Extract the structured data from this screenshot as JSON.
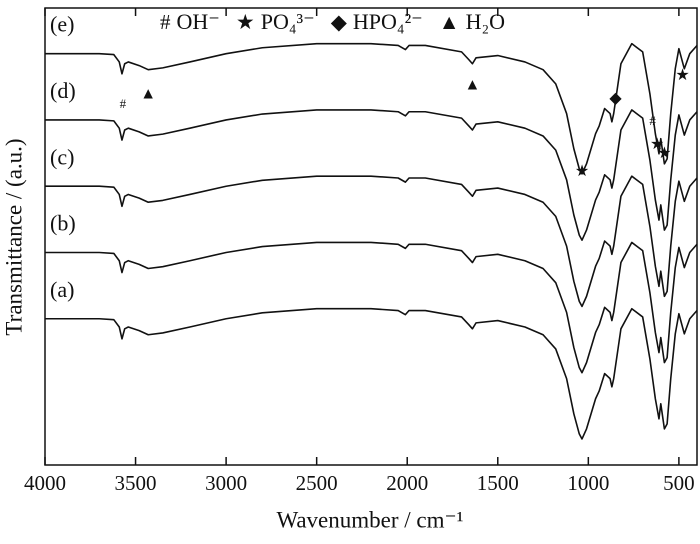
{
  "chart_data": {
    "type": "line",
    "xlabel": "Wavenumber / cm⁻¹",
    "ylabel": "Transmittance / (a.u.)",
    "xlim": [
      4000,
      400
    ],
    "xticks": [
      4000,
      3500,
      3000,
      2500,
      2000,
      1500,
      1000,
      500
    ],
    "ylim": [
      0,
      100
    ],
    "x": [
      4000,
      3700,
      3620,
      3590,
      3575,
      3560,
      3540,
      3480,
      3430,
      3350,
      3200,
      3000,
      2800,
      2500,
      2200,
      2050,
      2010,
      1990,
      1900,
      1700,
      1660,
      1640,
      1620,
      1500,
      1350,
      1250,
      1180,
      1120,
      1080,
      1050,
      1035,
      1010,
      960,
      940,
      910,
      880,
      870,
      860,
      820,
      760,
      700,
      660,
      630,
      610,
      600,
      580,
      565,
      545,
      520,
      500,
      470,
      440,
      400
    ],
    "series": [
      {
        "name": "(a)",
        "color": "#111111",
        "values": [
          32,
          32,
          31.8,
          30.2,
          27.6,
          29.8,
          30.2,
          29.4,
          28.5,
          28.9,
          30.2,
          32,
          33.3,
          34.2,
          34.2,
          33.8,
          32.9,
          33.8,
          33.8,
          32.4,
          30.7,
          29.8,
          31.1,
          31.6,
          30.2,
          28.5,
          25.4,
          18.9,
          11.2,
          6.8,
          5.7,
          7.9,
          14.5,
          16.2,
          20,
          18.9,
          17.1,
          18.9,
          29.8,
          34.2,
          32.4,
          23.2,
          14.5,
          10.1,
          13.4,
          7.9,
          9,
          18.9,
          28.7,
          33.1,
          28.7,
          32,
          33.8
        ]
      },
      {
        "name": "(b)",
        "color": "#111111",
        "values": [
          46.5,
          46.5,
          46.3,
          44.7,
          42.1,
          44.3,
          44.7,
          43.9,
          43,
          43.4,
          44.7,
          46.5,
          47.8,
          48.7,
          48.7,
          48.3,
          47.4,
          48.3,
          48.3,
          46.9,
          45.2,
          44.3,
          45.6,
          46.1,
          44.7,
          43,
          39.9,
          33.4,
          25.7,
          21.3,
          20.2,
          22.4,
          29,
          30.7,
          34.5,
          33.4,
          31.6,
          33.4,
          44.3,
          48.7,
          46.9,
          37.7,
          29,
          24.6,
          27.9,
          22.4,
          23.5,
          33.4,
          43.2,
          47.6,
          43.2,
          46.5,
          48.3
        ]
      },
      {
        "name": "(c)",
        "color": "#111111",
        "values": [
          61,
          61,
          60.8,
          59.2,
          56.6,
          58.8,
          59.2,
          58.4,
          57.5,
          57.9,
          59.2,
          61,
          62.3,
          63.2,
          63.2,
          62.8,
          61.9,
          62.8,
          62.8,
          61.4,
          59.7,
          58.8,
          60.1,
          60.6,
          59.2,
          57.5,
          54.4,
          47.9,
          40.2,
          35.8,
          34.7,
          36.9,
          43.5,
          45.2,
          49,
          47.9,
          46.1,
          47.9,
          58.8,
          63.2,
          61.4,
          52.2,
          43.5,
          39.1,
          42.4,
          36.9,
          38,
          47.9,
          57.7,
          62.1,
          57.7,
          61,
          62.8
        ]
      },
      {
        "name": "(d)",
        "color": "#111111",
        "values": [
          75.5,
          75.5,
          75.3,
          73.7,
          71.1,
          73.3,
          73.7,
          72.9,
          72,
          72.4,
          73.7,
          75.5,
          76.8,
          77.7,
          77.7,
          77.3,
          76.4,
          77.3,
          77.3,
          75.9,
          74.2,
          73.3,
          74.6,
          75.1,
          73.7,
          72,
          68.9,
          62.4,
          54.7,
          50.3,
          49.2,
          51.4,
          58,
          59.7,
          63.5,
          62.4,
          60.6,
          62.4,
          73.3,
          77.7,
          75.9,
          66.7,
          58,
          53.6,
          56.9,
          51.4,
          52.5,
          62.4,
          72.2,
          76.6,
          72.2,
          75.5,
          77.3
        ]
      },
      {
        "name": "(e)",
        "color": "#111111",
        "values": [
          90,
          90,
          89.8,
          88.2,
          85.6,
          87.8,
          88.2,
          87.4,
          86.5,
          86.9,
          88.2,
          90,
          91.3,
          92.2,
          92.2,
          91.8,
          90.9,
          91.8,
          91.8,
          90.4,
          88.7,
          87.8,
          89.1,
          89.6,
          88.2,
          86.5,
          83.4,
          76.9,
          69.2,
          64.8,
          63.7,
          65.9,
          72.5,
          74.2,
          78,
          76.9,
          75.1,
          76.9,
          87.8,
          92.2,
          90.4,
          81.2,
          72.5,
          68.1,
          71.4,
          65.9,
          67,
          76.9,
          86.7,
          91.1,
          86.7,
          90,
          91.8
        ]
      }
    ],
    "legend": [
      {
        "symbol": "#",
        "label": "OH⁻"
      },
      {
        "symbol": "★",
        "label": "PO₄³⁻"
      },
      {
        "symbol": "◆",
        "label": "HPO₄²⁻"
      },
      {
        "symbol": "▲",
        "label": "H₂O"
      }
    ],
    "markers": [
      {
        "symbol": "#",
        "x": 3570,
        "y": 78.8
      },
      {
        "symbol": "▲",
        "x": 3430,
        "y": 81
      },
      {
        "symbol": "▲",
        "x": 1640,
        "y": 83
      },
      {
        "symbol": "★",
        "x": 1035,
        "y": 64
      },
      {
        "symbol": "◆",
        "x": 850,
        "y": 80
      },
      {
        "symbol": "#",
        "x": 645,
        "y": 75
      },
      {
        "symbol": "★",
        "x": 620,
        "y": 70
      },
      {
        "symbol": "★",
        "x": 580,
        "y": 68
      },
      {
        "symbol": "★",
        "x": 480,
        "y": 85
      }
    ]
  }
}
